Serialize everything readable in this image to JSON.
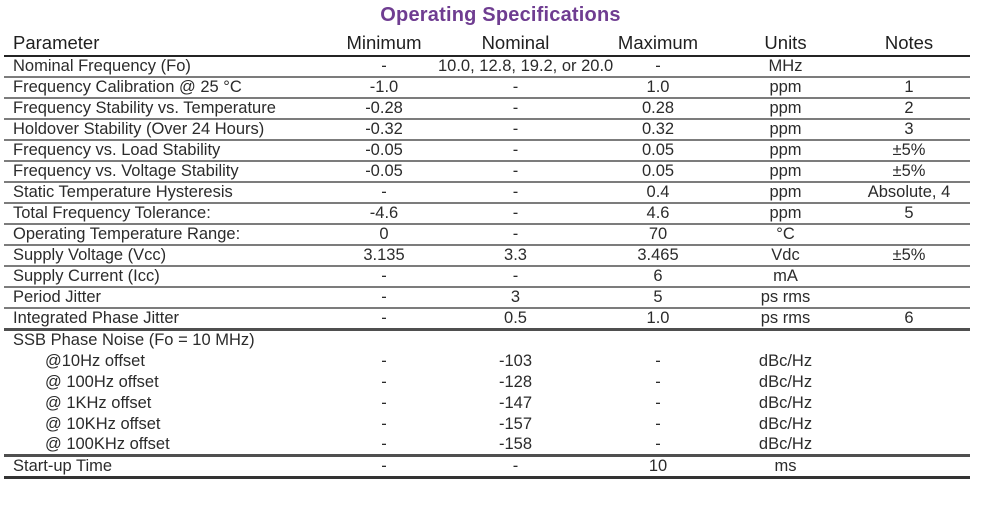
{
  "title": "Operating Specifications",
  "colors": {
    "title_accent": "#6F3D91",
    "text": "#2B2B2B",
    "rule_normal": "#7C7C7C",
    "rule_section": "#4F4F4F",
    "rule_header": "#242424"
  },
  "table": {
    "columns": [
      {
        "label": "Parameter"
      },
      {
        "label": "Minimum"
      },
      {
        "label": "Nominal"
      },
      {
        "label": "Maximum"
      },
      {
        "label": "Units"
      },
      {
        "label": "Notes"
      }
    ],
    "rows": [
      {
        "parameter": "Nominal Frequency (Fo)",
        "minimum": "-",
        "nominal": "10.0, 12.8, 19.2, or 20.0",
        "maximum": "-",
        "units": "MHz",
        "notes": "",
        "rule": "normal"
      },
      {
        "parameter": "Frequency Calibration @ 25 °C",
        "minimum": "-1.0",
        "nominal": "-",
        "maximum": "1.0",
        "units": "ppm",
        "notes": "1",
        "rule": "normal"
      },
      {
        "parameter": "Frequency Stability vs. Temperature",
        "minimum": "-0.28",
        "nominal": "-",
        "maximum": "0.28",
        "units": "ppm",
        "notes": "2",
        "rule": "normal"
      },
      {
        "parameter": "Holdover Stability (Over 24 Hours)",
        "minimum": "-0.32",
        "nominal": "-",
        "maximum": "0.32",
        "units": "ppm",
        "notes": "3",
        "rule": "normal"
      },
      {
        "parameter": "Frequency vs. Load Stability",
        "minimum": "-0.05",
        "nominal": "-",
        "maximum": "0.05",
        "units": "ppm",
        "notes": "±5%",
        "rule": "normal"
      },
      {
        "parameter": "Frequency vs. Voltage Stability",
        "minimum": "-0.05",
        "nominal": "-",
        "maximum": "0.05",
        "units": "ppm",
        "notes": "±5%",
        "rule": "normal"
      },
      {
        "parameter": "Static Temperature Hysteresis",
        "minimum": "-",
        "nominal": "-",
        "maximum": "0.4",
        "units": "ppm",
        "notes": "Absolute, 4",
        "rule": "normal"
      },
      {
        "parameter": "Total Frequency Tolerance:",
        "minimum": "-4.6",
        "nominal": "-",
        "maximum": "4.6",
        "units": "ppm",
        "notes": "5",
        "rule": "normal"
      },
      {
        "parameter": "Operating Temperature Range:",
        "minimum": "0",
        "nominal": "-",
        "maximum": "70",
        "units": "°C",
        "notes": "",
        "rule": "normal"
      },
      {
        "parameter": "Supply Voltage (Vcc)",
        "minimum": "3.135",
        "nominal": "3.3",
        "maximum": "3.465",
        "units": "Vdc",
        "notes": "±5%",
        "rule": "normal"
      },
      {
        "parameter": "Supply Current (Icc)",
        "minimum": "-",
        "nominal": "-",
        "maximum": "6",
        "units": "mA",
        "notes": "",
        "rule": "normal"
      },
      {
        "parameter": "Period Jitter",
        "minimum": "-",
        "nominal": "3",
        "maximum": "5",
        "units": "ps rms",
        "notes": "",
        "rule": "normal"
      },
      {
        "parameter": "Integrated Phase Jitter",
        "minimum": "-",
        "nominal": "0.5",
        "maximum": "1.0",
        "units": "ps rms",
        "notes": "6",
        "rule": "thick"
      },
      {
        "parameter": "SSB Phase Noise (Fo = 10 MHz)",
        "minimum": "",
        "nominal": "",
        "maximum": "",
        "units": "",
        "notes": "",
        "rule": "none",
        "group_header": true
      },
      {
        "parameter": "@10Hz offset",
        "minimum": "-",
        "nominal": "-103",
        "maximum": "-",
        "units": "dBc/Hz",
        "notes": "",
        "rule": "none",
        "indent": true
      },
      {
        "parameter": "@ 100Hz offset",
        "minimum": "-",
        "nominal": "-128",
        "maximum": "-",
        "units": "dBc/Hz",
        "notes": "",
        "rule": "none",
        "indent": true
      },
      {
        "parameter": "@ 1KHz offset",
        "minimum": "-",
        "nominal": "-147",
        "maximum": "-",
        "units": "dBc/Hz",
        "notes": "",
        "rule": "none",
        "indent": true
      },
      {
        "parameter": "@ 10KHz offset",
        "minimum": "-",
        "nominal": "-157",
        "maximum": "-",
        "units": "dBc/Hz",
        "notes": "",
        "rule": "none",
        "indent": true
      },
      {
        "parameter": "@ 100KHz offset",
        "minimum": "-",
        "nominal": "-158",
        "maximum": "-",
        "units": "dBc/Hz",
        "notes": "",
        "rule": "thick",
        "indent": true
      },
      {
        "parameter": "Start-up Time",
        "minimum": "-",
        "nominal": "-",
        "maximum": "10",
        "units": "ms",
        "notes": "",
        "rule": "bottom"
      }
    ]
  }
}
